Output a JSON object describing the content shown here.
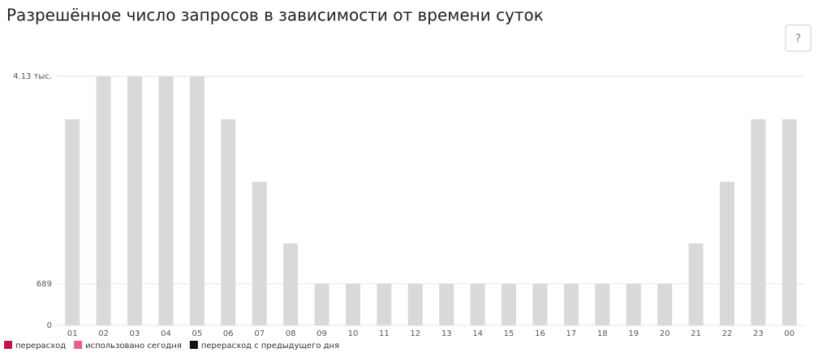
{
  "chart_data": {
    "type": "bar",
    "title": "Разрешённое число запросов в зависимости от времени суток",
    "help_button": "?",
    "categories": [
      "01",
      "02",
      "03",
      "04",
      "05",
      "06",
      "07",
      "08",
      "09",
      "10",
      "11",
      "12",
      "13",
      "14",
      "15",
      "16",
      "17",
      "18",
      "19",
      "20",
      "21",
      "22",
      "23",
      "00"
    ],
    "values": [
      3417,
      4130,
      4130,
      4130,
      4130,
      3417,
      2381,
      1359,
      689,
      689,
      689,
      689,
      689,
      689,
      689,
      689,
      689,
      689,
      689,
      689,
      1359,
      2381,
      3417,
      3417
    ],
    "color": "#d9d9d9",
    "ylim": [
      0,
      4130
    ],
    "yticks": [
      0,
      689,
      {
        "value": 4130,
        "label": "4.13 тыс."
      }
    ],
    "grid": true,
    "legend": [
      {
        "name": "перерасход",
        "color": "#c4124a"
      },
      {
        "name": "использовано сегодня",
        "color": "#e8608a"
      },
      {
        "name": "перерасход с предыдущего дня",
        "color": "#111111"
      }
    ]
  }
}
